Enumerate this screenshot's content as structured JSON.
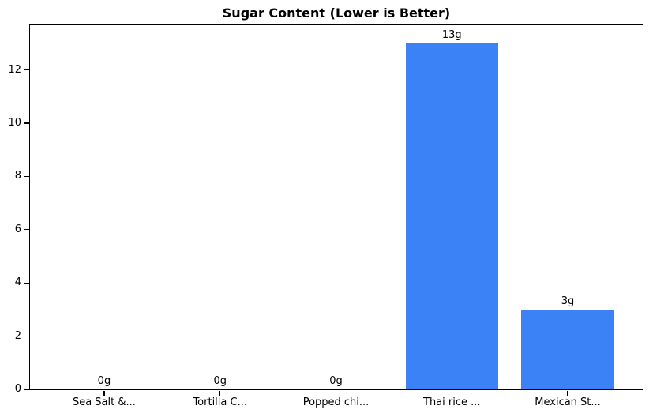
{
  "chart_data": {
    "type": "bar",
    "title": "Sugar Content (Lower is Better)",
    "categories": [
      "Sea Salt &...",
      "Tortilla C...",
      "Popped chi...",
      "Thai rice ...",
      "Mexican St..."
    ],
    "values": [
      0,
      0,
      0,
      13,
      3
    ],
    "bar_labels": [
      "0g",
      "0g",
      "0g",
      "13g",
      "3g"
    ],
    "xlabel": "",
    "ylabel": "",
    "ylim": [
      0,
      13.65
    ],
    "yticks": [
      0,
      2,
      4,
      6,
      8,
      10,
      12
    ],
    "grid": false,
    "legend_position": "none",
    "bar_color": "#3b82f6",
    "axis_color": "#000000",
    "background_color": "#ffffff"
  }
}
